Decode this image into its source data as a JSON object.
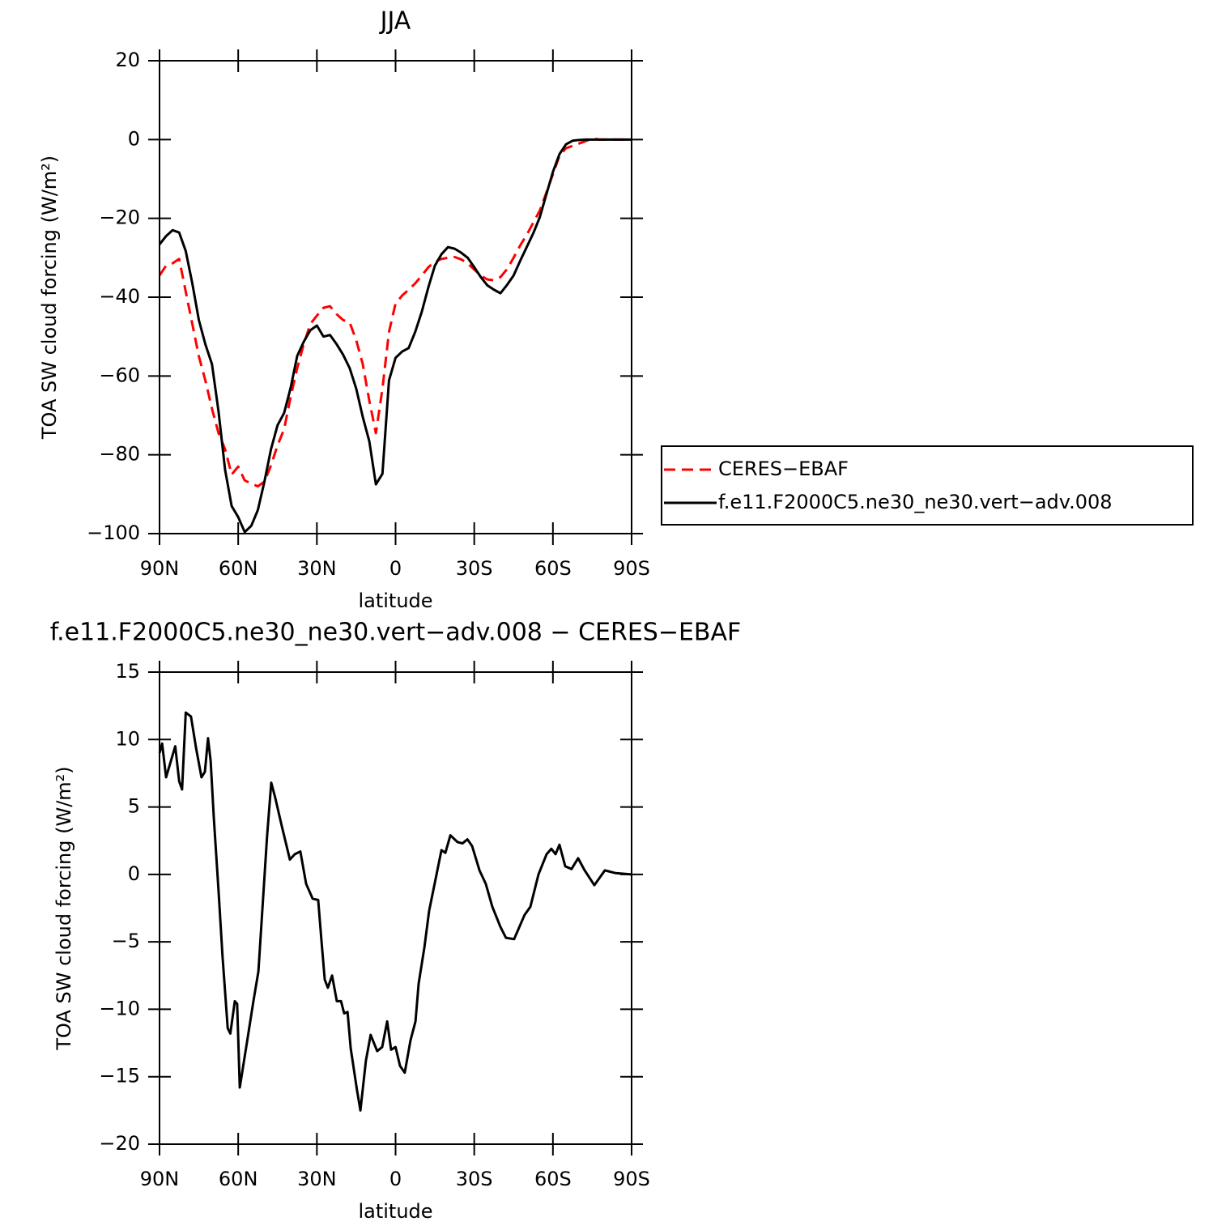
{
  "chart_data": [
    {
      "type": "line",
      "title": "JJA",
      "xlabel": "latitude",
      "ylabel": "TOA SW cloud forcing (W/m²)",
      "xlim": [
        90,
        -90
      ],
      "xticks": [
        {
          "value": 90,
          "label": "90N"
        },
        {
          "value": 60,
          "label": "60N"
        },
        {
          "value": 30,
          "label": "30N"
        },
        0,
        {
          "value": -30,
          "label": "30S"
        },
        {
          "value": -60,
          "label": "60S"
        },
        {
          "value": -90,
          "label": "90S"
        }
      ],
      "ylim": [
        -100,
        20
      ],
      "yticks": [
        20,
        0,
        {
          "value": -20,
          "label": "−20"
        },
        {
          "value": -40,
          "label": "−40"
        },
        {
          "value": -60,
          "label": "−60"
        },
        {
          "value": -80,
          "label": "−80"
        },
        {
          "value": -100,
          "label": "−100"
        }
      ],
      "legend": "right",
      "x": [
        90,
        87.5,
        85,
        82.5,
        80,
        77.5,
        75,
        72.5,
        70,
        67.5,
        65,
        62.5,
        60,
        57.5,
        55,
        52.5,
        50,
        47.5,
        45,
        42.5,
        40,
        37.5,
        35,
        32.5,
        30,
        27.5,
        25,
        22.5,
        20,
        17.5,
        15,
        12.5,
        10,
        7.5,
        5,
        2.5,
        0,
        -2.5,
        -5,
        -7.5,
        -10,
        -12.5,
        -15,
        -17.5,
        -20,
        -22.5,
        -25,
        -27.5,
        -30,
        -32.5,
        -35,
        -37.5,
        -40,
        -42.5,
        -45,
        -47.5,
        -50,
        -52.5,
        -55,
        -57.5,
        -60,
        -62.5,
        -65,
        -67.5,
        -70,
        -72.5,
        -75,
        -77.5,
        -80,
        -82.5,
        -85,
        -87.5,
        -90
      ],
      "series": [
        {
          "name": "CERES−EBAF",
          "color": "#ff0000",
          "linestyle": "dashed",
          "values": [
            -34.5,
            -32,
            -31.4,
            -30.3,
            -38.6,
            -46.8,
            -55,
            -61.2,
            -68.3,
            -74.5,
            -78.6,
            -85,
            -83,
            -86.5,
            -87.3,
            -88,
            -86.8,
            -82.7,
            -77.6,
            -73.5,
            -65.3,
            -58,
            -51.9,
            -46.8,
            -44.7,
            -42.7,
            -42.3,
            -44.3,
            -45.8,
            -46.4,
            -50.9,
            -57,
            -66.3,
            -74.5,
            -63.2,
            -48.8,
            -41.6,
            -39.6,
            -38.1,
            -36.5,
            -34.5,
            -32.4,
            -31,
            -30.3,
            -30,
            -29.8,
            -30.4,
            -31.4,
            -33,
            -34.5,
            -35.5,
            -35.7,
            -34.9,
            -32.9,
            -30,
            -26.9,
            -24.2,
            -21.1,
            -18,
            -13.5,
            -8.8,
            -4.1,
            -2.2,
            -1.6,
            -1,
            -0.4,
            0.3,
            0,
            0,
            0,
            0,
            0,
            0
          ]
        },
        {
          "name": "f.e11.F2000C5.ne30_ne30.vert−adv.008",
          "color": "#000000",
          "linestyle": "solid",
          "values": [
            -26.6,
            -24.5,
            -23,
            -23.6,
            -28.3,
            -36.5,
            -45.8,
            -52,
            -57,
            -69,
            -83.8,
            -93,
            -95.8,
            -99.6,
            -98,
            -94,
            -86.8,
            -78.6,
            -72.5,
            -69.4,
            -63,
            -54.9,
            -51.3,
            -48.4,
            -47.2,
            -50,
            -49.6,
            -51.9,
            -54.6,
            -58,
            -63.2,
            -70.4,
            -76.6,
            -87.5,
            -84.8,
            -61.1,
            -55.4,
            -53.8,
            -52.9,
            -48.8,
            -43.7,
            -37.5,
            -32,
            -29.1,
            -27.3,
            -27.7,
            -28.7,
            -30,
            -32.4,
            -34.9,
            -37,
            -38.1,
            -39,
            -36.9,
            -34.5,
            -30.8,
            -27.3,
            -23.8,
            -19.7,
            -13.9,
            -8.2,
            -3.7,
            -1.2,
            -0.3,
            -0.1,
            0,
            0,
            0,
            0,
            0,
            0,
            0,
            0
          ]
        }
      ]
    },
    {
      "type": "line",
      "title": "f.e11.F2000C5.ne30_ne30.vert−adv.008 − CERES−EBAF",
      "xlabel": "latitude",
      "ylabel": "TOA SW cloud forcing (W/m²)",
      "xlim": [
        90,
        -90
      ],
      "xticks": [
        {
          "value": 90,
          "label": "90N"
        },
        {
          "value": 60,
          "label": "60N"
        },
        {
          "value": 30,
          "label": "30N"
        },
        0,
        {
          "value": -30,
          "label": "30S"
        },
        {
          "value": -60,
          "label": "60S"
        },
        {
          "value": -90,
          "label": "90S"
        }
      ],
      "ylim": [
        -20,
        15
      ],
      "yticks": [
        15,
        10,
        5,
        0,
        {
          "value": -5,
          "label": "−5"
        },
        {
          "value": -10,
          "label": "−10"
        },
        {
          "value": -15,
          "label": "−15"
        },
        {
          "value": -20,
          "label": "−20"
        }
      ],
      "x": [
        90,
        89,
        87.5,
        84,
        82.5,
        81.4,
        80,
        78,
        76,
        74,
        72.7,
        71.5,
        70.5,
        69.3,
        67.5,
        66,
        64,
        63,
        61.3,
        60.4,
        59.4,
        56.7,
        54.2,
        52.3,
        49,
        47.4,
        45.9,
        43.4,
        40.3,
        38.4,
        36.3,
        34.1,
        31.6,
        29.5,
        28.3,
        27,
        25.8,
        24.2,
        22.4,
        20.8,
        19.6,
        18.3,
        17.1,
        14.7,
        13.4,
        11.3,
        9.5,
        7,
        5.1,
        3.2,
        1.7,
        0,
        -1.7,
        -3.5,
        -5.7,
        -7.6,
        -8.8,
        -11,
        -12.8,
        -15,
        -17.5,
        -19,
        -20.9,
        -23.6,
        -25.5,
        -27.4,
        -29.2,
        -32,
        -34.4,
        -36.9,
        -40,
        -42.1,
        -45.2,
        -49.2,
        -51.4,
        -54.5,
        -57.6,
        -59.4,
        -61,
        -62.5,
        -64.7,
        -67.1,
        -69.6,
        -72.1,
        -75.8,
        -79.8,
        -83.8,
        -90
      ],
      "series": [
        {
          "color": "#000000",
          "linestyle": "solid",
          "values": [
            9,
            9.7,
            7.2,
            9.5,
            6.9,
            6.3,
            12,
            11.7,
            9.3,
            7.2,
            7.6,
            10.1,
            8.4,
            4.2,
            -1.2,
            -6,
            -11.4,
            -11.8,
            -9.4,
            -9.6,
            -15.8,
            -12.5,
            -9.4,
            -7.2,
            2.8,
            6.8,
            5.7,
            3.6,
            1.1,
            1.5,
            1.7,
            -0.7,
            -1.8,
            -1.9,
            -4.8,
            -7.8,
            -8.4,
            -7.5,
            -9.4,
            -9.4,
            -10.3,
            -10.2,
            -12.9,
            -16,
            -17.5,
            -13.8,
            -11.9,
            -13.1,
            -12.8,
            -10.9,
            -13,
            -12.8,
            -14.2,
            -14.7,
            -12.3,
            -10.9,
            -8.1,
            -5.4,
            -2.7,
            -0.6,
            1.8,
            1.6,
            2.9,
            2.4,
            2.3,
            2.6,
            2.1,
            0.3,
            -0.7,
            -2.4,
            -3.9,
            -4.7,
            -4.8,
            -3,
            -2.4,
            0,
            1.5,
            1.9,
            1.5,
            2.2,
            0.6,
            0.4,
            1.2,
            0.3,
            -0.8,
            0.3,
            0.1,
            0
          ]
        }
      ]
    }
  ]
}
